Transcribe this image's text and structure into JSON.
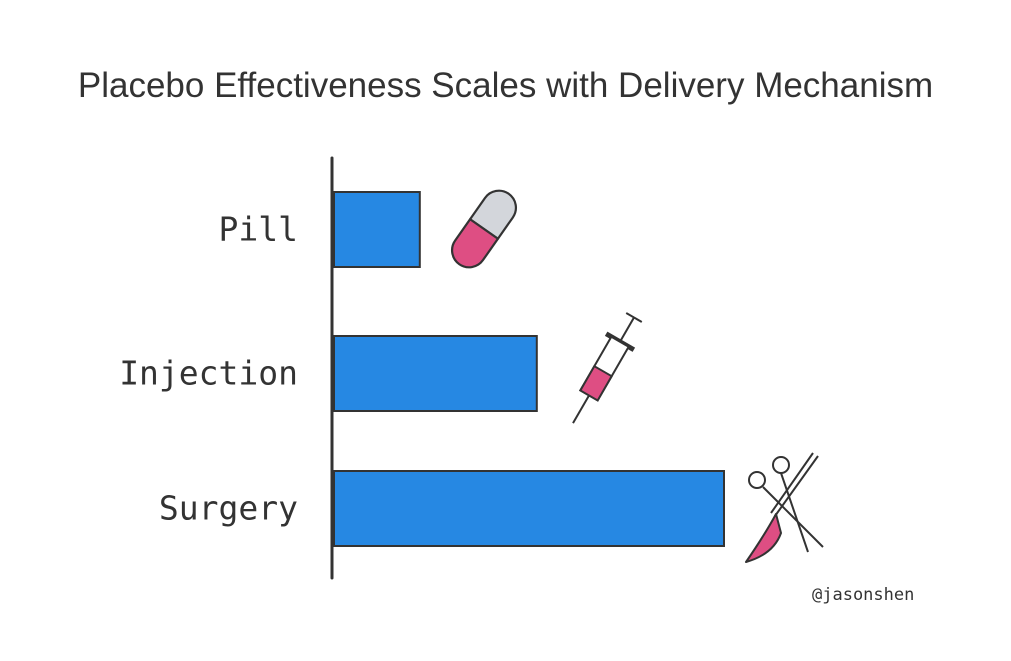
{
  "title": "Placebo Effectiveness Scales with Delivery Mechanism",
  "credit": "@jasonshen",
  "colors": {
    "bar": "#2688e3",
    "outline": "#333333",
    "accent": "#de4e83",
    "pill_cap": "#d3d6db"
  },
  "chart_data": {
    "type": "bar",
    "orientation": "horizontal",
    "title": "Placebo Effectiveness Scales with Delivery Mechanism",
    "categories": [
      "Pill",
      "Injection",
      "Surgery"
    ],
    "values": [
      22,
      52,
      100
    ],
    "icons": [
      "pill-icon",
      "syringe-icon",
      "surgery-tools-icon"
    ],
    "xlabel": "",
    "ylabel": "",
    "xlim": [
      0,
      100
    ],
    "grid": false,
    "legend": "none"
  }
}
